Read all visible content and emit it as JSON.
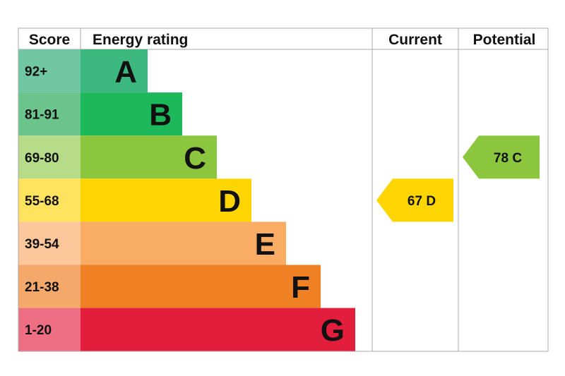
{
  "chart_data": {
    "type": "bar",
    "header": {
      "score": "Score",
      "rating": "Energy rating",
      "current": "Current",
      "potential": "Potential"
    },
    "bands": [
      {
        "range": "92+",
        "letter": "A",
        "min": 92,
        "max": null,
        "color": "#3cb87f",
        "score_color": "#71c7a3"
      },
      {
        "range": "81-91",
        "letter": "B",
        "min": 81,
        "max": 91,
        "color": "#1db85a",
        "score_color": "#6cc48d"
      },
      {
        "range": "69-80",
        "letter": "C",
        "min": 69,
        "max": 80,
        "color": "#8cc63f",
        "score_color": "#b7dc89"
      },
      {
        "range": "55-68",
        "letter": "D",
        "min": 55,
        "max": 68,
        "color": "#ffd500",
        "score_color": "#ffe35e"
      },
      {
        "range": "39-54",
        "letter": "E",
        "min": 39,
        "max": 54,
        "color": "#f9ac64",
        "score_color": "#fcc79a"
      },
      {
        "range": "21-38",
        "letter": "F",
        "min": 21,
        "max": 38,
        "color": "#ef8023",
        "score_color": "#f4a86a"
      },
      {
        "range": "1-20",
        "letter": "G",
        "min": 1,
        "max": 20,
        "color": "#e31d3c",
        "score_color": "#ee6f84"
      }
    ],
    "current": {
      "value": 67,
      "letter": "D",
      "label": "67  D",
      "color": "#ffd500"
    },
    "potential": {
      "value": 78,
      "letter": "C",
      "label": "78  C",
      "color": "#8cc63f"
    }
  }
}
